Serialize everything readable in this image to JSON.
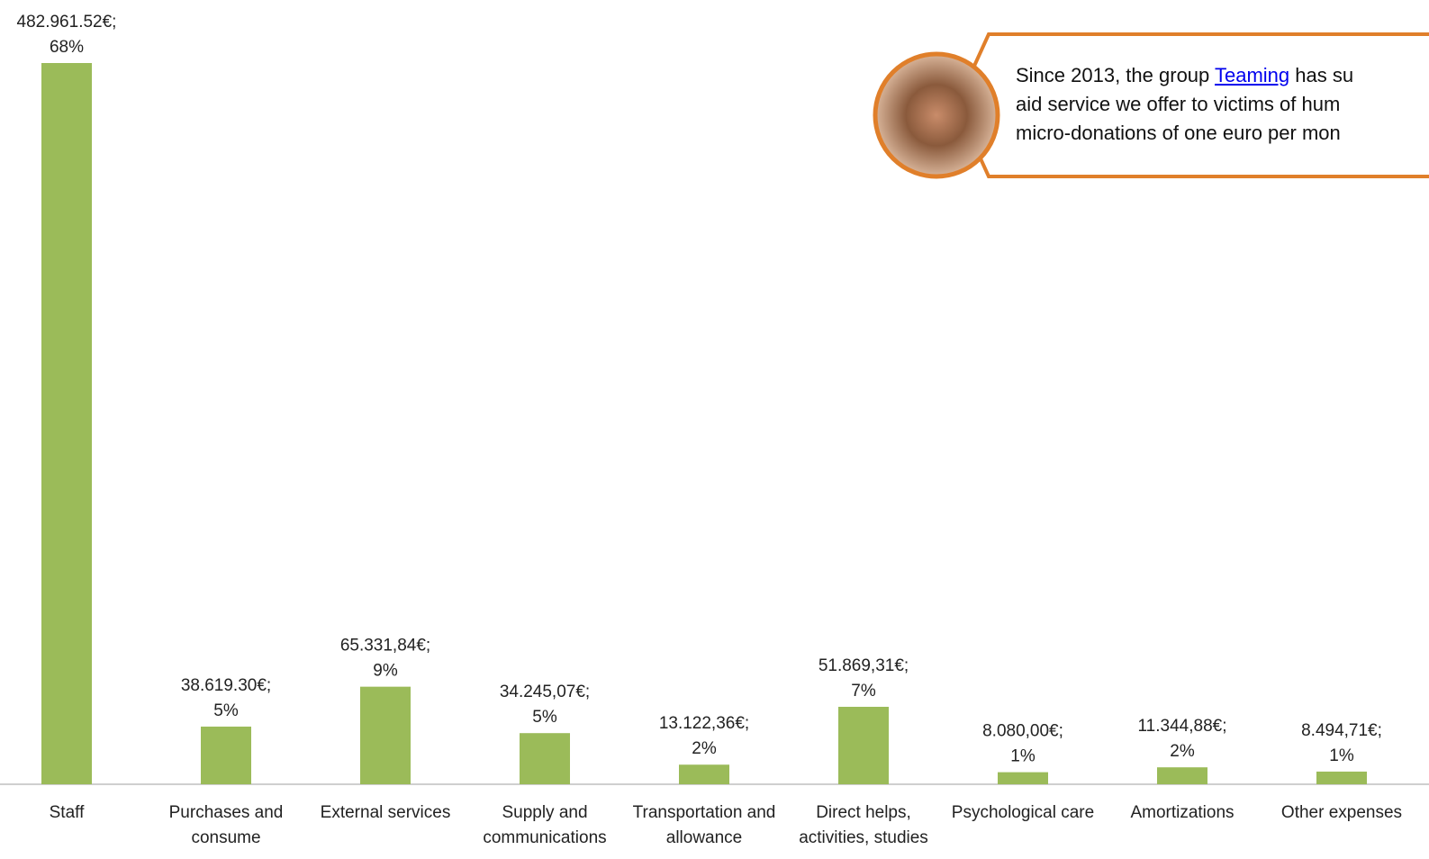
{
  "chart_data": {
    "type": "bar",
    "categories": [
      "Staff",
      "Purchases and consume",
      "External services",
      "Supply and communications",
      "Transportation and allowance",
      "Direct helps, activities, studies",
      "Psychological care",
      "Amortizations",
      "Other expenses"
    ],
    "values": [
      482961.52,
      38619.3,
      65331.84,
      34245.07,
      13122.36,
      51869.31,
      8080.0,
      11344.88,
      8494.71
    ],
    "value_labels": [
      [
        "482.961.52€;",
        "68%"
      ],
      [
        "38.619.30€;",
        "5%"
      ],
      [
        "65.331,84€;",
        "9%"
      ],
      [
        "34.245,07€;",
        "5%"
      ],
      [
        "13.122,36€;",
        "2%"
      ],
      [
        "51.869,31€;",
        "7%"
      ],
      [
        "8.080,00€;",
        "1%"
      ],
      [
        "11.344,88€;",
        "2%"
      ],
      [
        "8.494,71€;",
        "1%"
      ]
    ],
    "color": "#9bbb59"
  },
  "callout": {
    "line1_before": "Since 2013, the group ",
    "link": "Teaming",
    "line1_after": " has su",
    "line2": "aid service we offer to victims of hum",
    "line3": "micro-donations of one euro per mon"
  }
}
